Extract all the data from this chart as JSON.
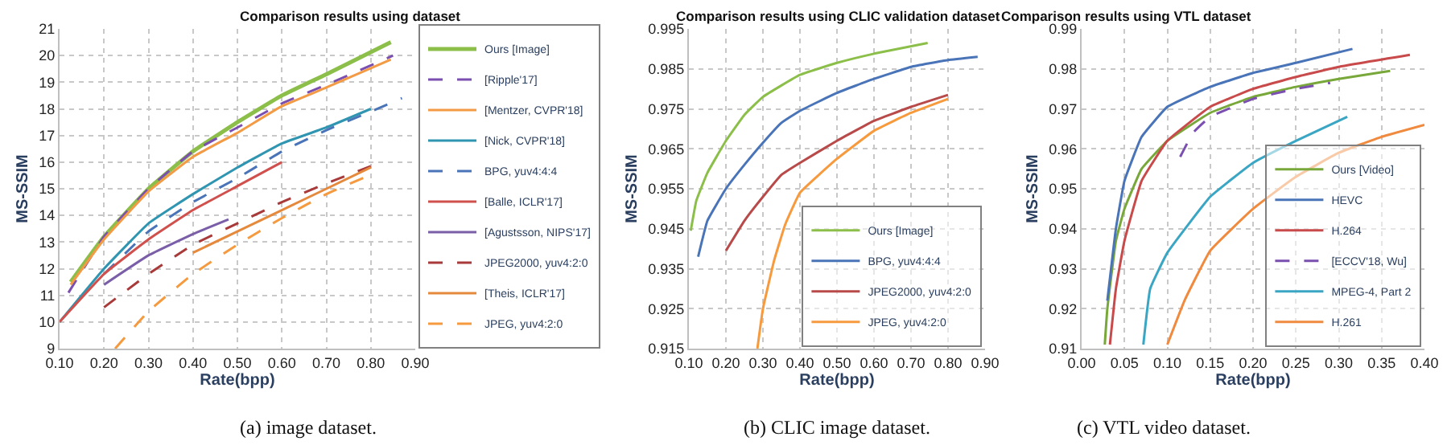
{
  "chart_data": [
    {
      "type": "line",
      "title": "Comparison results using dataset",
      "xlabel": "Rate(bpp)",
      "ylabel": "MS-SSIM",
      "annotations": [
        "(a) image dataset."
      ],
      "xlim": [
        0.1,
        0.9
      ],
      "xticks": [
        {
          "value": 0.1,
          "label": "0.10"
        },
        {
          "value": 0.2,
          "label": "0.20"
        },
        {
          "value": 0.3,
          "label": "0.30"
        },
        {
          "value": 0.4,
          "label": "0.40"
        },
        {
          "value": 0.5,
          "label": "0.50"
        },
        {
          "value": 0.6,
          "label": "0.60"
        },
        {
          "value": 0.7,
          "label": "0.70"
        },
        {
          "value": 0.8,
          "label": "0.80"
        },
        {
          "value": 0.9,
          "label": "0.90"
        }
      ],
      "ylim": [
        9,
        21
      ],
      "yticks": [
        9,
        10,
        11,
        12,
        13,
        14,
        15,
        16,
        17,
        18,
        19,
        20,
        21
      ],
      "grid": true,
      "legend": "right",
      "series": [
        {
          "name": "Ours [Image]",
          "color": "#8cbf4a",
          "x": [
            0.125,
            0.2,
            0.3,
            0.4,
            0.5,
            0.6,
            0.7,
            0.845
          ],
          "values": [
            11.5,
            13.2,
            15.0,
            16.4,
            17.5,
            18.5,
            19.3,
            20.5
          ]
        },
        {
          "name": "[Ripple'17]",
          "color": "#7a4fb0",
          "line_style": "dashed",
          "x": [
            0.12,
            0.15,
            0.2,
            0.3,
            0.4,
            0.5,
            0.6,
            0.7,
            0.85
          ],
          "values": [
            11.1,
            11.9,
            13.2,
            15.0,
            16.4,
            17.3,
            18.2,
            18.9,
            20.0
          ]
        },
        {
          "name": "[Mentzer, CVPR'18]",
          "color": "#f39a45",
          "x": [
            0.125,
            0.2,
            0.3,
            0.4,
            0.5,
            0.6,
            0.7,
            0.845
          ],
          "values": [
            11.4,
            13.1,
            14.9,
            16.2,
            17.1,
            18.1,
            18.8,
            19.85
          ]
        },
        {
          "name": "[Nick, CVPR'18]",
          "color": "#2f95b0",
          "x": [
            0.1,
            0.2,
            0.3,
            0.4,
            0.5,
            0.6,
            0.7,
            0.8
          ],
          "values": [
            10.0,
            12.0,
            13.7,
            14.8,
            15.8,
            16.7,
            17.3,
            18.0
          ]
        },
        {
          "name": "BPG, yuv4:4:4",
          "color": "#4a74b8",
          "line_style": "dashed",
          "x": [
            0.2,
            0.3,
            0.4,
            0.5,
            0.6,
            0.7,
            0.8,
            0.87
          ],
          "values": [
            11.8,
            13.4,
            14.5,
            15.4,
            16.4,
            17.2,
            17.9,
            18.4
          ]
        },
        {
          "name": "[Balle, ICLR'17]",
          "color": "#d0504d",
          "x": [
            0.1,
            0.2,
            0.3,
            0.4,
            0.5,
            0.6
          ],
          "values": [
            10.0,
            11.8,
            13.1,
            14.2,
            15.1,
            16.0
          ]
        },
        {
          "name": "[Agustsson, NIPS'17]",
          "color": "#7a5ea8",
          "x": [
            0.2,
            0.3,
            0.4,
            0.48
          ],
          "values": [
            11.4,
            12.5,
            13.3,
            13.85
          ]
        },
        {
          "name": "JPEG2000, yuv4:2:0",
          "color": "#a83a3a",
          "line_style": "dashed",
          "x": [
            0.2,
            0.3,
            0.4,
            0.5,
            0.6,
            0.7,
            0.8
          ],
          "values": [
            10.55,
            11.8,
            12.9,
            13.7,
            14.5,
            15.2,
            15.85
          ]
        },
        {
          "name": "[Theis, ICLR'17]",
          "color": "#e5893c",
          "x": [
            0.4,
            0.5,
            0.6,
            0.7,
            0.8
          ],
          "values": [
            12.6,
            13.4,
            14.2,
            15.0,
            15.8
          ]
        },
        {
          "name": "JPEG, yuv4:2:0",
          "color": "#f59a3e",
          "line_style": "dashed",
          "x": [
            0.225,
            0.3,
            0.4,
            0.5,
            0.6,
            0.7,
            0.81
          ],
          "values": [
            9.0,
            10.4,
            11.8,
            12.9,
            13.9,
            14.8,
            15.6
          ]
        }
      ]
    },
    {
      "type": "line",
      "title": "Comparison results using CLIC validation dataset",
      "xlabel": "Rate(bpp)",
      "ylabel": "MS-SSIM",
      "annotations": [
        "(b) CLIC image dataset."
      ],
      "xlim": [
        0.1,
        0.9
      ],
      "xticks": [
        {
          "value": 0.1,
          "label": "0.10"
        },
        {
          "value": 0.2,
          "label": "0.20"
        },
        {
          "value": 0.3,
          "label": "0.30"
        },
        {
          "value": 0.4,
          "label": "0.40"
        },
        {
          "value": 0.5,
          "label": "0.50"
        },
        {
          "value": 0.6,
          "label": "0.60"
        },
        {
          "value": 0.7,
          "label": "0.70"
        },
        {
          "value": 0.8,
          "label": "0.80"
        },
        {
          "value": 0.9,
          "label": "0.90"
        }
      ],
      "ylim": [
        0.915,
        0.995
      ],
      "yticks": [
        0.915,
        0.925,
        0.935,
        0.945,
        0.955,
        0.965,
        0.975,
        0.985,
        0.995
      ],
      "grid": true,
      "legend": "bottom right",
      "series": [
        {
          "name": "Ours [Image]",
          "color": "#8cbf4a",
          "x": [
            0.105,
            0.12,
            0.15,
            0.2,
            0.25,
            0.3,
            0.4,
            0.5,
            0.6,
            0.745
          ],
          "values": [
            0.9445,
            0.952,
            0.959,
            0.967,
            0.9735,
            0.978,
            0.9835,
            0.9865,
            0.9888,
            0.9915
          ]
        },
        {
          "name": "BPG, yuv4:4:4",
          "color": "#4a74b8",
          "x": [
            0.125,
            0.15,
            0.2,
            0.25,
            0.3,
            0.35,
            0.4,
            0.5,
            0.6,
            0.7,
            0.8,
            0.88
          ],
          "values": [
            0.938,
            0.947,
            0.955,
            0.961,
            0.9665,
            0.9715,
            0.9745,
            0.979,
            0.9825,
            0.9855,
            0.9872,
            0.988
          ]
        },
        {
          "name": "JPEG2000, yuv4:2:0",
          "color": "#b84a4a",
          "x": [
            0.2,
            0.25,
            0.3,
            0.35,
            0.4,
            0.5,
            0.6,
            0.7,
            0.8
          ],
          "values": [
            0.9395,
            0.947,
            0.953,
            0.9585,
            0.9615,
            0.967,
            0.972,
            0.9755,
            0.9785
          ]
        },
        {
          "name": "JPEG, yuv4:2:0",
          "color": "#f79a3e",
          "x": [
            0.285,
            0.3,
            0.33,
            0.36,
            0.4,
            0.5,
            0.6,
            0.7,
            0.8
          ],
          "values": [
            0.915,
            0.925,
            0.937,
            0.946,
            0.954,
            0.9625,
            0.9695,
            0.974,
            0.9775
          ]
        }
      ]
    },
    {
      "type": "line",
      "title": "Comparison results using VTL dataset",
      "xlabel": "Rate(bpp)",
      "ylabel": "MS-SSIM",
      "annotations": [
        "(c) VTL video dataset."
      ],
      "xlim": [
        0,
        0.4
      ],
      "xticks": [
        {
          "value": 0,
          "label": "0.00"
        },
        {
          "value": 0.05,
          "label": "0.05"
        },
        {
          "value": 0.1,
          "label": "0.10"
        },
        {
          "value": 0.15,
          "label": "0.15"
        },
        {
          "value": 0.2,
          "label": "0.20"
        },
        {
          "value": 0.25,
          "label": "0.25"
        },
        {
          "value": 0.3,
          "label": "0.30"
        },
        {
          "value": 0.35,
          "label": "0.35"
        },
        {
          "value": 0.4,
          "label": "0.40"
        }
      ],
      "ylim": [
        0.91,
        0.99
      ],
      "yticks": [
        0.91,
        0.92,
        0.93,
        0.94,
        0.95,
        0.96,
        0.97,
        0.98,
        0.99
      ],
      "grid": true,
      "legend": "bottom right",
      "series": [
        {
          "name": "Ours [Video]",
          "color": "#78a83a",
          "x": [
            0.027,
            0.03,
            0.04,
            0.05,
            0.07,
            0.1,
            0.15,
            0.2,
            0.25,
            0.3,
            0.36
          ],
          "values": [
            0.911,
            0.92,
            0.937,
            0.945,
            0.955,
            0.962,
            0.969,
            0.973,
            0.9755,
            0.9775,
            0.9795
          ]
        },
        {
          "name": "HEVC",
          "color": "#4a74b8",
          "x": [
            0.03,
            0.04,
            0.05,
            0.07,
            0.1,
            0.15,
            0.2,
            0.25,
            0.316
          ],
          "values": [
            0.922,
            0.94,
            0.952,
            0.963,
            0.9705,
            0.9755,
            0.979,
            0.9815,
            0.985
          ]
        },
        {
          "name": "H.264",
          "color": "#c84a4a",
          "x": [
            0.033,
            0.04,
            0.05,
            0.07,
            0.1,
            0.15,
            0.2,
            0.25,
            0.3,
            0.383
          ],
          "values": [
            0.911,
            0.925,
            0.937,
            0.952,
            0.962,
            0.9705,
            0.975,
            0.978,
            0.9805,
            0.9835
          ]
        },
        {
          "name": "[ECCV'18, Wu]",
          "color": "#7a4fb0",
          "line_style": "dashed",
          "x": [
            0.115,
            0.13,
            0.15,
            0.2,
            0.25,
            0.29
          ],
          "values": [
            0.958,
            0.964,
            0.968,
            0.9725,
            0.975,
            0.9765
          ]
        },
        {
          "name": "MPEG-4, Part 2",
          "color": "#3aa6c4",
          "x": [
            0.072,
            0.08,
            0.1,
            0.15,
            0.2,
            0.25,
            0.31
          ],
          "values": [
            0.911,
            0.925,
            0.934,
            0.948,
            0.9565,
            0.962,
            0.968
          ]
        },
        {
          "name": "H.261",
          "color": "#f08a3e",
          "x": [
            0.1,
            0.12,
            0.15,
            0.2,
            0.25,
            0.3,
            0.35,
            0.4
          ],
          "values": [
            0.911,
            0.922,
            0.9345,
            0.945,
            0.953,
            0.959,
            0.963,
            0.966
          ]
        }
      ]
    }
  ]
}
